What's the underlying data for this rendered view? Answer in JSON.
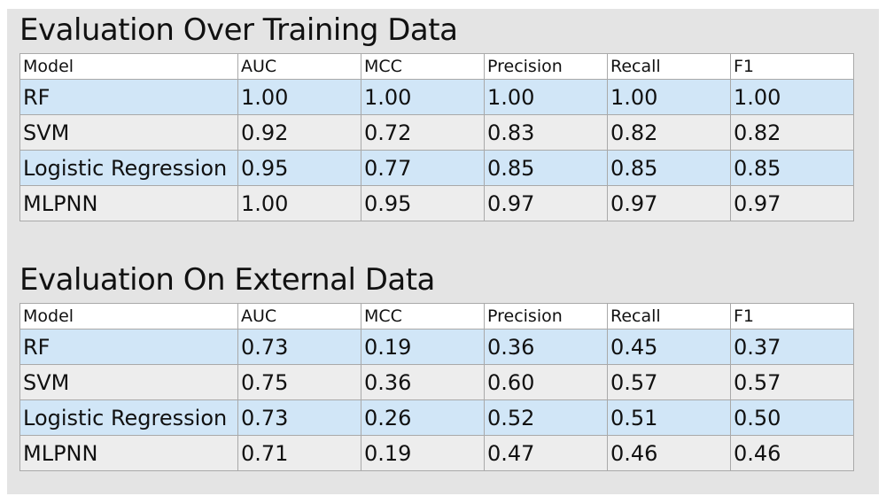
{
  "sections": [
    {
      "title": "Evaluation Over Training Data",
      "headers": [
        "Model",
        "AUC",
        "MCC",
        "Precision",
        "Recall",
        "F1"
      ],
      "rows": [
        [
          "RF",
          "1.00",
          "1.00",
          "1.00",
          "1.00",
          "1.00"
        ],
        [
          "SVM",
          "0.92",
          "0.72",
          "0.83",
          "0.82",
          "0.82"
        ],
        [
          "Logistic Regression",
          "0.95",
          "0.77",
          "0.85",
          "0.85",
          "0.85"
        ],
        [
          "MLPNN",
          "1.00",
          "0.95",
          "0.97",
          "0.97",
          "0.97"
        ]
      ]
    },
    {
      "title": "Evaluation On External Data",
      "headers": [
        "Model",
        "AUC",
        "MCC",
        "Precision",
        "Recall",
        "F1"
      ],
      "rows": [
        [
          "RF",
          "0.73",
          "0.19",
          "0.36",
          "0.45",
          "0.37"
        ],
        [
          "SVM",
          "0.75",
          "0.36",
          "0.60",
          "0.57",
          "0.57"
        ],
        [
          "Logistic Regression",
          "0.73",
          "0.26",
          "0.52",
          "0.51",
          "0.50"
        ],
        [
          "MLPNN",
          "0.71",
          "0.19",
          "0.47",
          "0.46",
          "0.46"
        ]
      ]
    }
  ],
  "colors": {
    "page_background": "#e4e4e4",
    "header_row": "#ffffff",
    "striped_row": "#d1e6f7",
    "plain_row": "#ededed",
    "border": "#a9a9a9"
  }
}
